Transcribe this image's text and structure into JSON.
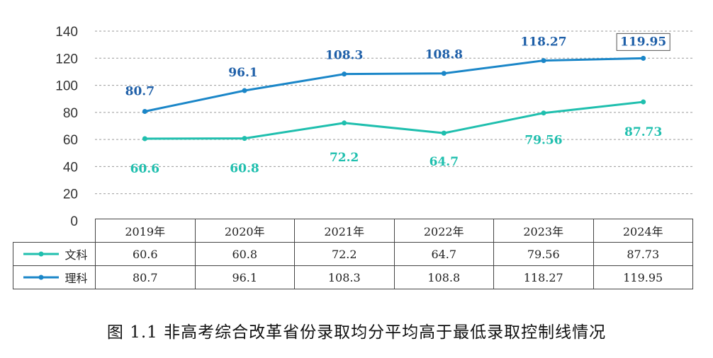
{
  "chart_data": {
    "type": "line",
    "categories": [
      "2019年",
      "2020年",
      "2021年",
      "2022年",
      "2023年",
      "2024年"
    ],
    "ylim": [
      0,
      140
    ],
    "yticks": [
      "0",
      "20",
      "40",
      "60",
      "80",
      "100",
      "120",
      "140"
    ],
    "grid": true,
    "series": [
      {
        "name": "文科",
        "color": "#1fbfae",
        "values": [
          60.6,
          60.8,
          72.2,
          64.7,
          79.56,
          87.73
        ],
        "labels": [
          "60.6",
          "60.8",
          "72.2",
          "64.7",
          "79.56",
          "87.73"
        ]
      },
      {
        "name": "理科",
        "color": "#1a86c8",
        "values": [
          80.7,
          96.1,
          108.3,
          108.8,
          118.27,
          119.95
        ],
        "labels": [
          "80.7",
          "96.1",
          "108.3",
          "108.8",
          "118.27",
          "119.95"
        ]
      }
    ],
    "title": "图 1.1  非高考综合改革省份录取均分平均高于最低录取控制线情况"
  },
  "colors": {
    "liberal": "#1fbfae",
    "science": "#1a86c8",
    "label_science": "#1e5fa8"
  }
}
